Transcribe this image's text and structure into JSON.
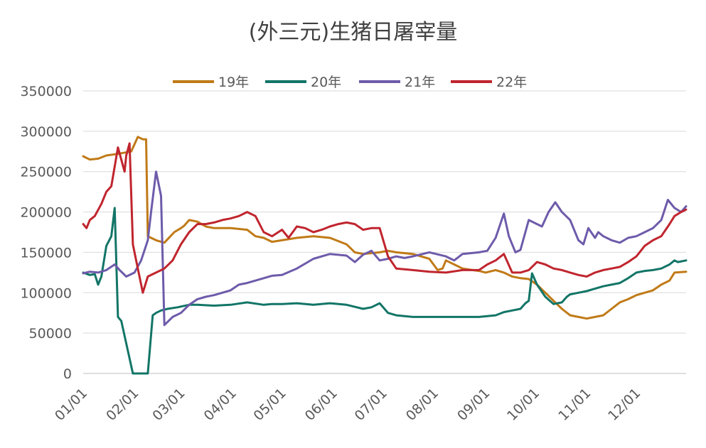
{
  "chart_data": {
    "type": "line",
    "title": "(外三元)生猪日屠宰量",
    "xlabel": "",
    "ylabel": "",
    "ylim": [
      0,
      350000
    ],
    "y_ticks": [
      0,
      50000,
      100000,
      150000,
      200000,
      250000,
      300000,
      350000
    ],
    "x_ticks": [
      "01/01",
      "02/01",
      "03/01",
      "04/01",
      "05/01",
      "06/01",
      "07/01",
      "08/01",
      "09/01",
      "10/01",
      "11/01",
      "12/01"
    ],
    "x_tick_day_of_year": [
      1,
      32,
      60,
      91,
      121,
      152,
      182,
      213,
      244,
      274,
      305,
      335
    ],
    "xlim_day_of_year": [
      1,
      365
    ],
    "grid": "horizontal",
    "legend_position": "top",
    "series": [
      {
        "name": "19年",
        "color": "#C07A17",
        "x": [
          1,
          5,
          10,
          15,
          22,
          30,
          34,
          37,
          39,
          40,
          42,
          45,
          50,
          56,
          60,
          62,
          65,
          70,
          75,
          80,
          90,
          100,
          105,
          110,
          115,
          121,
          130,
          140,
          150,
          160,
          165,
          170,
          180,
          185,
          190,
          200,
          210,
          215,
          218,
          220,
          225,
          230,
          236,
          240,
          244,
          250,
          255,
          260,
          265,
          270,
          275,
          280,
          285,
          290,
          295,
          300,
          305,
          310,
          315,
          320,
          325,
          330,
          335,
          340,
          345,
          350,
          355,
          358,
          365
        ],
        "y": [
          269000,
          265000,
          266000,
          270000,
          272000,
          275000,
          293000,
          290000,
          290000,
          170000,
          168000,
          165000,
          162000,
          175000,
          180000,
          183000,
          190000,
          188000,
          182000,
          180000,
          180000,
          178000,
          170000,
          168000,
          163000,
          165000,
          168000,
          170000,
          168000,
          160000,
          150000,
          148000,
          150000,
          152000,
          150000,
          148000,
          142000,
          128000,
          130000,
          140000,
          135000,
          130000,
          128000,
          127000,
          125000,
          128000,
          125000,
          120000,
          118000,
          117000,
          110000,
          100000,
          90000,
          80000,
          72000,
          70000,
          68000,
          70000,
          72000,
          80000,
          88000,
          92000,
          97000,
          100000,
          103000,
          110000,
          115000,
          125000,
          126000
        ]
      },
      {
        "name": "20年",
        "color": "#127567",
        "x": [
          1,
          5,
          8,
          10,
          12,
          15,
          18,
          20,
          22,
          24,
          31,
          36,
          40,
          43,
          45,
          48,
          52,
          58,
          65,
          70,
          80,
          90,
          100,
          110,
          115,
          121,
          130,
          140,
          150,
          160,
          170,
          175,
          180,
          185,
          190,
          200,
          210,
          220,
          230,
          240,
          250,
          255,
          260,
          265,
          268,
          270,
          272,
          275,
          280,
          285,
          290,
          293,
          295,
          300,
          305,
          310,
          315,
          320,
          325,
          330,
          335,
          340,
          345,
          350,
          355,
          358,
          360,
          365
        ],
        "y": [
          125000,
          122000,
          123000,
          110000,
          120000,
          158000,
          170000,
          205000,
          70000,
          65000,
          0,
          0,
          0,
          72000,
          75000,
          78000,
          80000,
          82000,
          85000,
          85000,
          84000,
          85000,
          88000,
          85000,
          86000,
          86000,
          87000,
          85000,
          87000,
          85000,
          80000,
          82000,
          87000,
          75000,
          72000,
          70000,
          70000,
          70000,
          70000,
          70000,
          72000,
          76000,
          78000,
          80000,
          87000,
          90000,
          124000,
          110000,
          95000,
          86000,
          88000,
          95000,
          98000,
          100000,
          102000,
          105000,
          108000,
          110000,
          112000,
          118000,
          125000,
          127000,
          128000,
          130000,
          135000,
          140000,
          138000,
          140000
        ]
      },
      {
        "name": "21年",
        "color": "#6E5BAA",
        "x": [
          1,
          5,
          10,
          15,
          20,
          23,
          27,
          32,
          36,
          40,
          42,
          45,
          48,
          50,
          55,
          60,
          65,
          70,
          75,
          80,
          85,
          90,
          95,
          100,
          105,
          110,
          115,
          121,
          130,
          140,
          150,
          160,
          165,
          170,
          175,
          180,
          185,
          190,
          195,
          200,
          210,
          220,
          225,
          230,
          240,
          245,
          250,
          255,
          258,
          262,
          265,
          270,
          275,
          278,
          282,
          286,
          290,
          295,
          300,
          303,
          306,
          310,
          312,
          315,
          320,
          325,
          330,
          335,
          340,
          345,
          350,
          354,
          358,
          362,
          365
        ],
        "y": [
          124000,
          126000,
          125000,
          128000,
          135000,
          128000,
          120000,
          125000,
          140000,
          165000,
          200000,
          250000,
          220000,
          60000,
          70000,
          75000,
          85000,
          92000,
          95000,
          97000,
          100000,
          103000,
          110000,
          112000,
          115000,
          118000,
          121000,
          122000,
          130000,
          142000,
          148000,
          146000,
          138000,
          147000,
          152000,
          140000,
          142000,
          145000,
          143000,
          145000,
          150000,
          145000,
          140000,
          148000,
          150000,
          152000,
          168000,
          198000,
          170000,
          150000,
          153000,
          190000,
          185000,
          182000,
          200000,
          212000,
          200000,
          190000,
          165000,
          160000,
          180000,
          168000,
          175000,
          170000,
          165000,
          162000,
          168000,
          170000,
          175000,
          180000,
          190000,
          215000,
          205000,
          200000,
          207000
        ]
      },
      {
        "name": "22年",
        "color": "#C0252E",
        "x": [
          1,
          3,
          5,
          8,
          12,
          15,
          18,
          22,
          26,
          27,
          29,
          31,
          33,
          37,
          40,
          45,
          50,
          55,
          60,
          65,
          70,
          75,
          80,
          85,
          90,
          95,
          100,
          105,
          110,
          115,
          121,
          125,
          130,
          135,
          140,
          145,
          150,
          155,
          160,
          165,
          170,
          175,
          180,
          185,
          190,
          200,
          210,
          220,
          230,
          240,
          245,
          250,
          255,
          260,
          265,
          270,
          275,
          280,
          285,
          290,
          295,
          300,
          305,
          310,
          315,
          320,
          325,
          330,
          335,
          340,
          345,
          350,
          355,
          358,
          362,
          365
        ],
        "y": [
          185000,
          180000,
          190000,
          195000,
          210000,
          225000,
          232000,
          280000,
          250000,
          270000,
          285000,
          160000,
          140000,
          100000,
          120000,
          125000,
          130000,
          140000,
          160000,
          175000,
          185000,
          185000,
          187000,
          190000,
          192000,
          195000,
          200000,
          195000,
          175000,
          170000,
          178000,
          168000,
          182000,
          180000,
          175000,
          178000,
          182000,
          185000,
          187000,
          185000,
          178000,
          180000,
          180000,
          145000,
          130000,
          128000,
          126000,
          125000,
          128000,
          128000,
          135000,
          140000,
          148000,
          125000,
          125000,
          128000,
          138000,
          135000,
          130000,
          128000,
          125000,
          122000,
          120000,
          125000,
          128000,
          130000,
          132000,
          138000,
          145000,
          158000,
          165000,
          170000,
          185000,
          195000,
          200000,
          203000
        ]
      }
    ]
  }
}
